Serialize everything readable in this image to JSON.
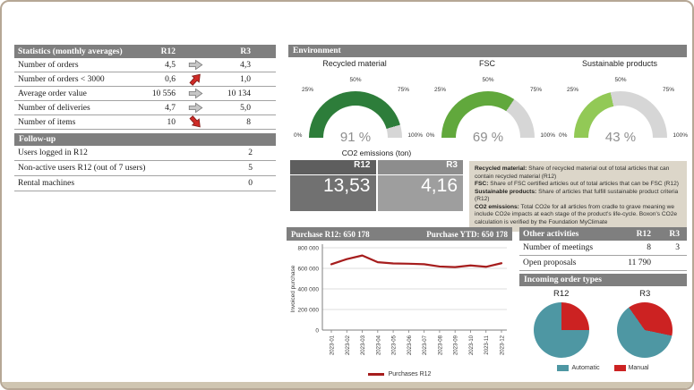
{
  "stats": {
    "title": "Statistics (monthly averages)",
    "col_r12": "R12",
    "col_r3": "R3",
    "rows": [
      {
        "label": "Number of orders",
        "r12": "4,5",
        "trend": "neutral",
        "r3": "4,3"
      },
      {
        "label": "Number of orders < 3000",
        "r12": "0,6",
        "trend": "up-bad",
        "r3": "1,0"
      },
      {
        "label": "Average order value",
        "r12": "10 556",
        "trend": "neutral",
        "r3": "10 134"
      },
      {
        "label": "Number of deliveries",
        "r12": "4,7",
        "trend": "neutral",
        "r3": "5,0"
      },
      {
        "label": "Number of items",
        "r12": "10",
        "trend": "down-bad",
        "r3": "8"
      }
    ]
  },
  "followup": {
    "title": "Follow-up",
    "rows": [
      {
        "label": "Users logged in R12",
        "value": "2"
      },
      {
        "label": "Non-active users R12 (out of 7 users)",
        "value": "5"
      },
      {
        "label": "Rental machines",
        "value": "0"
      }
    ]
  },
  "environment": {
    "title": "Environment",
    "ticks": [
      "0%",
      "25%",
      "50%",
      "75%",
      "100%"
    ],
    "gauges": [
      {
        "label": "Recycled material",
        "value": 91,
        "display": "91 %",
        "color": "#2d7d3a"
      },
      {
        "label": "FSC",
        "value": 69,
        "display": "69 %",
        "color": "#61a83c"
      },
      {
        "label": "Sustainable products",
        "value": 43,
        "display": "43 %",
        "color": "#92c956"
      }
    ]
  },
  "co2": {
    "title": "CO2 emissions (ton)",
    "col_r12": "R12",
    "col_r3": "R3",
    "r12_value": "13,53",
    "r3_value": "4,16"
  },
  "info": {
    "items": [
      {
        "label": "Recycled material:",
        "text": " Share of recycled material out of total articles that can contain recycled material (R12)"
      },
      {
        "label": "FSC:",
        "text": " Share of FSC certified articles out of total articles that can be FSC (R12)"
      },
      {
        "label": "Sustainable products:",
        "text": " Share of articles that fulfill sustainable product criteria (R12)"
      },
      {
        "label": "CO2 emissions:",
        "text": " Total CO2e for all articles from cradle to grave meaning we include CO2e impacts at each stage of the product's life-cycle. Boxon's CO2e calculation is verified by the Foundation MyClimate"
      }
    ]
  },
  "purchase": {
    "header_left": "Purchase R12: 650 178",
    "header_right": "Purchase YTD: 650 178"
  },
  "other_activities": {
    "title": "Other activities",
    "col_r12": "R12",
    "col_r3": "R3",
    "rows": [
      {
        "label": "Number of meetings",
        "r12": "8",
        "r3": "3"
      },
      {
        "label": "Open proposals",
        "r12": "11 790",
        "r3": ""
      }
    ]
  },
  "incoming": {
    "title": "Incoming order types",
    "legend": [
      {
        "label": "Automatic",
        "color": "#4e97a3"
      },
      {
        "label": "Manual",
        "color": "#cc2222"
      }
    ]
  },
  "chart_data": [
    {
      "type": "line",
      "title": "Purchases R12",
      "x": [
        "2023-01",
        "2023-02",
        "2023-03",
        "2023-04",
        "2023-05",
        "2023-06",
        "2023-07",
        "2023-08",
        "2023-09",
        "2023-10",
        "2023-11",
        "2023-12"
      ],
      "series": [
        {
          "name": "Purchases R12",
          "values": [
            640000,
            690000,
            725000,
            660000,
            648000,
            645000,
            640000,
            618000,
            612000,
            628000,
            615000,
            650000
          ]
        }
      ],
      "xlabel": "",
      "ylabel": "Invoiced purchase",
      "ylim": [
        0,
        800000
      ],
      "yticks": [
        "0",
        "200 000",
        "400 000",
        "600 000",
        "800 000"
      ],
      "line_color": "#a61d1d",
      "grid": true,
      "legend_position": "bottom"
    },
    {
      "type": "pie",
      "title": "R12",
      "labels": [
        "Automatic",
        "Manual"
      ],
      "values": [
        75,
        25
      ],
      "colors": [
        "#4e97a3",
        "#cc2222"
      ],
      "start_deg": 0
    },
    {
      "type": "pie",
      "title": "R3",
      "labels": [
        "Automatic",
        "Manual"
      ],
      "values": [
        62,
        38
      ],
      "colors": [
        "#4e97a3",
        "#cc2222"
      ],
      "start_deg": -35
    }
  ]
}
